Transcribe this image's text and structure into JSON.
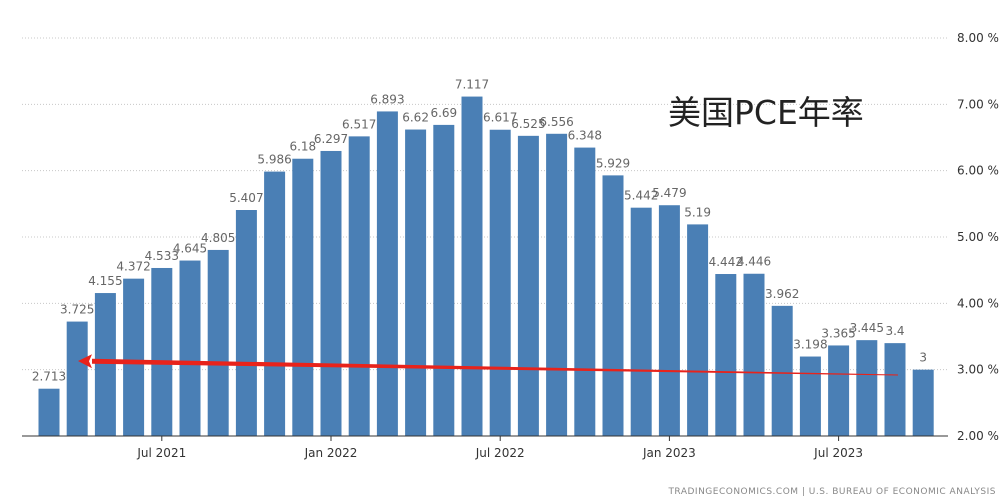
{
  "chart_data": {
    "type": "bar",
    "title": "美国PCE年率",
    "source": "TRADINGECONOMICS.COM  |  U.S. BUREAU OF ECONOMIC ANALYSIS",
    "bar_color": "#4a7fb5",
    "annotation_color": "#e8231b",
    "ylim": [
      2.0,
      8.0
    ],
    "y_ticks": [
      "2.00 %",
      "3.00 %",
      "4.00 %",
      "5.00 %",
      "6.00 %",
      "7.00 %",
      "8.00 %"
    ],
    "y_tick_values": [
      2,
      3,
      4,
      5,
      6,
      7,
      8
    ],
    "grid": true,
    "y_axis_position": "right",
    "x_tick_labels": [
      {
        "label": "Jul 2021",
        "index": 4
      },
      {
        "label": "Jan 2022",
        "index": 10
      },
      {
        "label": "Jul 2022",
        "index": 16
      },
      {
        "label": "Jan 2023",
        "index": 22
      },
      {
        "label": "Jul 2023",
        "index": 28
      }
    ],
    "categories": [
      "Mar 2021",
      "Apr 2021",
      "May 2021",
      "Jun 2021",
      "Jul 2021",
      "Aug 2021",
      "Sep 2021",
      "Oct 2021",
      "Nov 2021",
      "Dec 2021",
      "Jan 2022",
      "Feb 2022",
      "Mar 2022",
      "Apr 2022",
      "May 2022",
      "Jun 2022",
      "Jul 2022",
      "Aug 2022",
      "Sep 2022",
      "Oct 2022",
      "Nov 2022",
      "Dec 2022",
      "Jan 2023",
      "Feb 2023",
      "Mar 2023",
      "Apr 2023",
      "May 2023",
      "Jun 2023",
      "Jul 2023",
      "Aug 2023",
      "Sep 2023",
      "Oct 2023"
    ],
    "values": [
      2.713,
      3.725,
      4.155,
      4.372,
      4.533,
      4.645,
      4.805,
      5.407,
      5.986,
      6.18,
      6.297,
      6.517,
      6.893,
      6.62,
      6.69,
      7.117,
      6.617,
      6.525,
      6.556,
      6.348,
      5.929,
      5.442,
      5.479,
      5.19,
      4.442,
      4.446,
      3.962,
      3.198,
      3.365,
      3.445,
      3.4,
      3
    ],
    "labels": [
      "2.713",
      "3.725",
      "4.155",
      "4.372",
      "4.533",
      "4.645",
      "4.805",
      "5.407",
      "5.986",
      "6.18",
      "6.297",
      "6.517",
      "6.893",
      "6.62",
      "6.69",
      "7.117",
      "6.617",
      "6.525",
      "6.556",
      "6.348",
      "5.929",
      "5.442",
      "5.479",
      "5.19",
      "4.442",
      "4.446",
      "3.962",
      "3.198",
      "3.365",
      "3.445",
      "3.4",
      "3"
    ],
    "annotation": {
      "type": "arrow",
      "from_value": 2.92,
      "to_value": 3.13
    }
  }
}
